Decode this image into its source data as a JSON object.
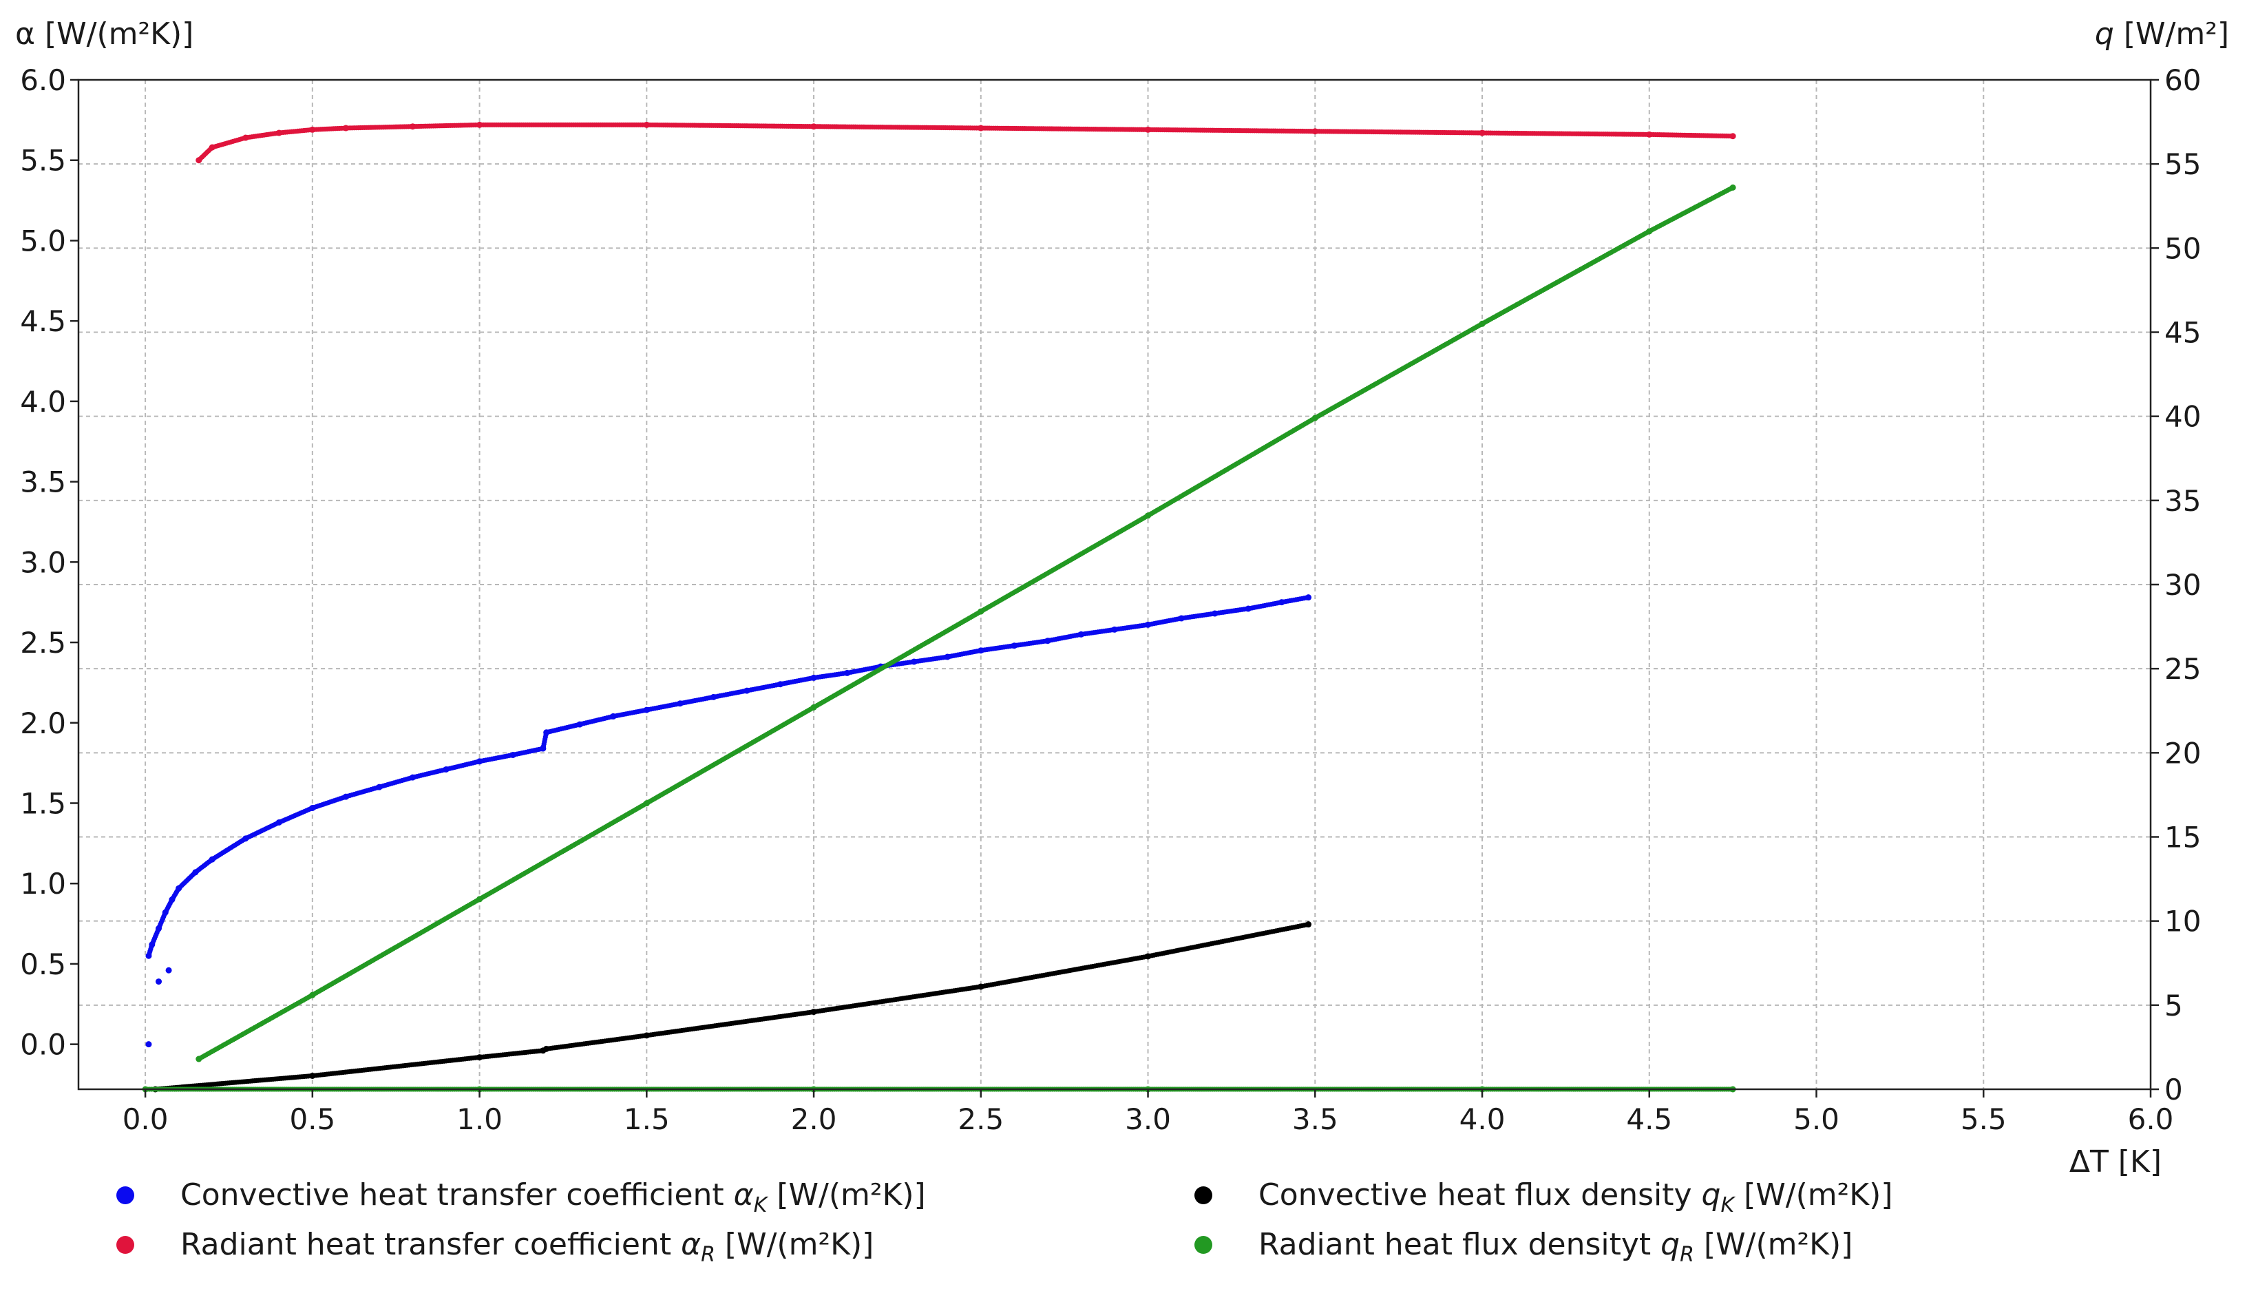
{
  "chart_data": {
    "type": "scatter",
    "title": "",
    "xlabel": "ΔT [K]",
    "ylabel_left": "α [W/(m²K)]",
    "ylabel_right_prefix": "q",
    "ylabel_right_unit": " [W/m²]",
    "xlim": [
      -0.2,
      6.0
    ],
    "ylim_left": [
      -0.28,
      6.0
    ],
    "ylim_right": [
      0,
      60
    ],
    "x_ticks": [
      "0.0",
      "0.5",
      "1.0",
      "1.5",
      "2.0",
      "2.5",
      "3.0",
      "3.5",
      "4.0",
      "4.5",
      "5.0",
      "5.5",
      "6.0"
    ],
    "y_left_ticks": [
      "0.0",
      "0.5",
      "1.0",
      "1.5",
      "2.0",
      "2.5",
      "3.0",
      "3.5",
      "4.0",
      "4.5",
      "5.0",
      "5.5",
      "6.0"
    ],
    "y_right_ticks": [
      "0",
      "5",
      "10",
      "15",
      "20",
      "25",
      "30",
      "35",
      "40",
      "45",
      "50",
      "55",
      "60"
    ],
    "grid": true,
    "legend_placement": "bottom",
    "series": [
      {
        "key": "alpha_k",
        "name_prefix": "Convective heat transfer coefficient ",
        "symbol": "α",
        "subscript": "K",
        "name_suffix": " [W/(m²K)]",
        "color": "#0a0af0",
        "axis": "left",
        "points": [
          [
            0.01,
            0.0
          ],
          [
            0.04,
            0.39
          ],
          [
            0.07,
            0.46
          ],
          [
            0.01,
            0.55
          ],
          [
            0.02,
            0.62
          ],
          [
            0.04,
            0.72
          ],
          [
            0.06,
            0.82
          ],
          [
            0.08,
            0.9
          ],
          [
            0.1,
            0.97
          ],
          [
            0.15,
            1.07
          ],
          [
            0.2,
            1.15
          ],
          [
            0.3,
            1.28
          ],
          [
            0.4,
            1.38
          ],
          [
            0.5,
            1.47
          ],
          [
            0.6,
            1.54
          ],
          [
            0.7,
            1.6
          ],
          [
            0.8,
            1.66
          ],
          [
            0.9,
            1.71
          ],
          [
            1.0,
            1.76
          ],
          [
            1.1,
            1.8
          ],
          [
            1.19,
            1.84
          ],
          [
            1.2,
            1.94
          ],
          [
            1.3,
            1.99
          ],
          [
            1.4,
            2.04
          ],
          [
            1.5,
            2.08
          ],
          [
            1.6,
            2.12
          ],
          [
            1.7,
            2.16
          ],
          [
            1.8,
            2.2
          ],
          [
            1.9,
            2.24
          ],
          [
            2.0,
            2.28
          ],
          [
            2.1,
            2.31
          ],
          [
            2.2,
            2.35
          ],
          [
            2.3,
            2.38
          ],
          [
            2.4,
            2.41
          ],
          [
            2.5,
            2.45
          ],
          [
            2.6,
            2.48
          ],
          [
            2.7,
            2.51
          ],
          [
            2.8,
            2.55
          ],
          [
            2.9,
            2.58
          ],
          [
            3.0,
            2.61
          ],
          [
            3.1,
            2.65
          ],
          [
            3.2,
            2.68
          ],
          [
            3.3,
            2.71
          ],
          [
            3.4,
            2.75
          ],
          [
            3.48,
            2.78
          ]
        ]
      },
      {
        "key": "alpha_r",
        "name_prefix": "Radiant heat transfer coefficient ",
        "symbol": "α",
        "subscript": "R",
        "name_suffix": " [W/(m²K)]",
        "color": "#e0143c",
        "axis": "left",
        "points": [
          [
            0.16,
            5.5
          ],
          [
            0.2,
            5.58
          ],
          [
            0.3,
            5.64
          ],
          [
            0.4,
            5.67
          ],
          [
            0.5,
            5.69
          ],
          [
            0.6,
            5.7
          ],
          [
            0.8,
            5.71
          ],
          [
            1.0,
            5.72
          ],
          [
            1.5,
            5.72
          ],
          [
            2.0,
            5.71
          ],
          [
            2.5,
            5.7
          ],
          [
            3.0,
            5.69
          ],
          [
            3.5,
            5.68
          ],
          [
            4.0,
            5.67
          ],
          [
            4.5,
            5.66
          ],
          [
            4.75,
            5.65
          ]
        ]
      },
      {
        "key": "q_k",
        "name_prefix": "Convective heat flux density ",
        "symbol": "q",
        "subscript": "K",
        "name_suffix": " [W/(m²K)]",
        "color": "#000000",
        "axis": "right",
        "points": [
          [
            0.03,
            0.0
          ],
          [
            0.5,
            0.8
          ],
          [
            1.0,
            1.9
          ],
          [
            1.19,
            2.3
          ],
          [
            1.2,
            2.4
          ],
          [
            1.5,
            3.2
          ],
          [
            2.0,
            4.6
          ],
          [
            2.5,
            6.1
          ],
          [
            3.0,
            7.9
          ],
          [
            3.48,
            9.8
          ]
        ]
      },
      {
        "key": "q_r",
        "name_prefix": "Radiant heat flux densityt ",
        "symbol": "q",
        "subscript": "R",
        "name_suffix": " [W/(m²K)]",
        "color": "#229922",
        "axis": "right",
        "points": [
          [
            0.16,
            1.8
          ],
          [
            0.5,
            5.6
          ],
          [
            1.0,
            11.3
          ],
          [
            1.5,
            17.0
          ],
          [
            2.0,
            22.7
          ],
          [
            2.5,
            28.4
          ],
          [
            3.0,
            34.1
          ],
          [
            3.5,
            39.9
          ],
          [
            4.0,
            45.5
          ],
          [
            4.5,
            51.0
          ],
          [
            4.75,
            53.6
          ]
        ]
      },
      {
        "key": "baseline",
        "name": "",
        "color": "#229922",
        "axis": "right",
        "points": [
          [
            0.0,
            0.0
          ],
          [
            1.0,
            0.0
          ],
          [
            2.0,
            0.0
          ],
          [
            3.0,
            0.0
          ],
          [
            4.0,
            0.0
          ],
          [
            4.75,
            0.0
          ]
        ]
      }
    ]
  }
}
